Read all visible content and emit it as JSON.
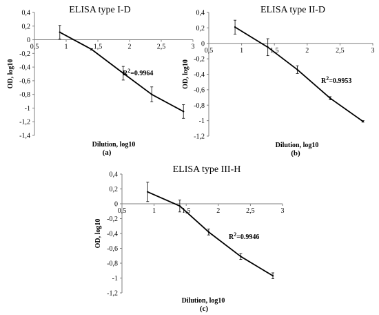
{
  "chart_data": [
    {
      "type": "line",
      "title": "ELISA type I-D",
      "xlabel": "Dilution, log10",
      "ylabel": "OD, log10",
      "panel_label": "(a)",
      "r2_label": "=0.9964",
      "r2_prefix": "R",
      "r2_sup": "2",
      "xlim": [
        0.5,
        3
      ],
      "ylim": [
        -1.4,
        0.4
      ],
      "x_ticks": [
        "0,5",
        "1",
        "1,5",
        "2",
        "2,5",
        "3"
      ],
      "y_ticks": [
        "0,4",
        "0,2",
        "0",
        "-0,2",
        "-0,4",
        "-0,6",
        "-0,8",
        "-1",
        "-1,2",
        "-1,4"
      ],
      "x": [
        0.9,
        1.4,
        1.9,
        2.35,
        2.85
      ],
      "y": [
        0.11,
        -0.14,
        -0.49,
        -0.8,
        -1.05
      ],
      "error": [
        0.1,
        0.01,
        0.1,
        0.11,
        0.1
      ]
    },
    {
      "type": "line",
      "title": "ELISA type II-D",
      "xlabel": "Dilution, log10",
      "ylabel": "OD, log10",
      "panel_label": "(b)",
      "r2_label": "=0.9953",
      "r2_prefix": "R",
      "r2_sup": "2",
      "xlim": [
        0.5,
        3
      ],
      "ylim": [
        -1.2,
        0.4
      ],
      "x_ticks": [
        "0,5",
        "1",
        "1,5",
        "2",
        "2,5",
        "3"
      ],
      "y_ticks": [
        "0,4",
        "0,2",
        "0",
        "-0,2",
        "-0,4",
        "-0,6",
        "-0,8",
        "-1",
        "-1,2"
      ],
      "x": [
        0.9,
        1.4,
        1.85,
        2.35,
        2.85
      ],
      "y": [
        0.21,
        -0.05,
        -0.34,
        -0.71,
        -1.01
      ],
      "error": [
        0.09,
        0.11,
        0.05,
        0.02,
        0.01
      ]
    },
    {
      "type": "line",
      "title": "ELISA type III-H",
      "xlabel": "Dilution, log10",
      "ylabel": "OD, log10",
      "panel_label": "(c)",
      "r2_label": "=0.9946",
      "r2_prefix": "R",
      "r2_sup": "2",
      "xlim": [
        0.5,
        3
      ],
      "ylim": [
        -1.2,
        0.4
      ],
      "x_ticks": [
        "0,5",
        "1",
        "1,5",
        "2",
        "2,5",
        "3"
      ],
      "y_ticks": [
        "0,4",
        "0,2",
        "0",
        "-0,2",
        "-0,4",
        "-0,6",
        "-0,8",
        "-1",
        "-1,2"
      ],
      "x": [
        0.9,
        1.4,
        1.85,
        2.35,
        2.85
      ],
      "y": [
        0.16,
        -0.03,
        -0.38,
        -0.71,
        -0.97
      ],
      "error": [
        0.13,
        0.08,
        0.04,
        0.04,
        0.04
      ]
    }
  ]
}
